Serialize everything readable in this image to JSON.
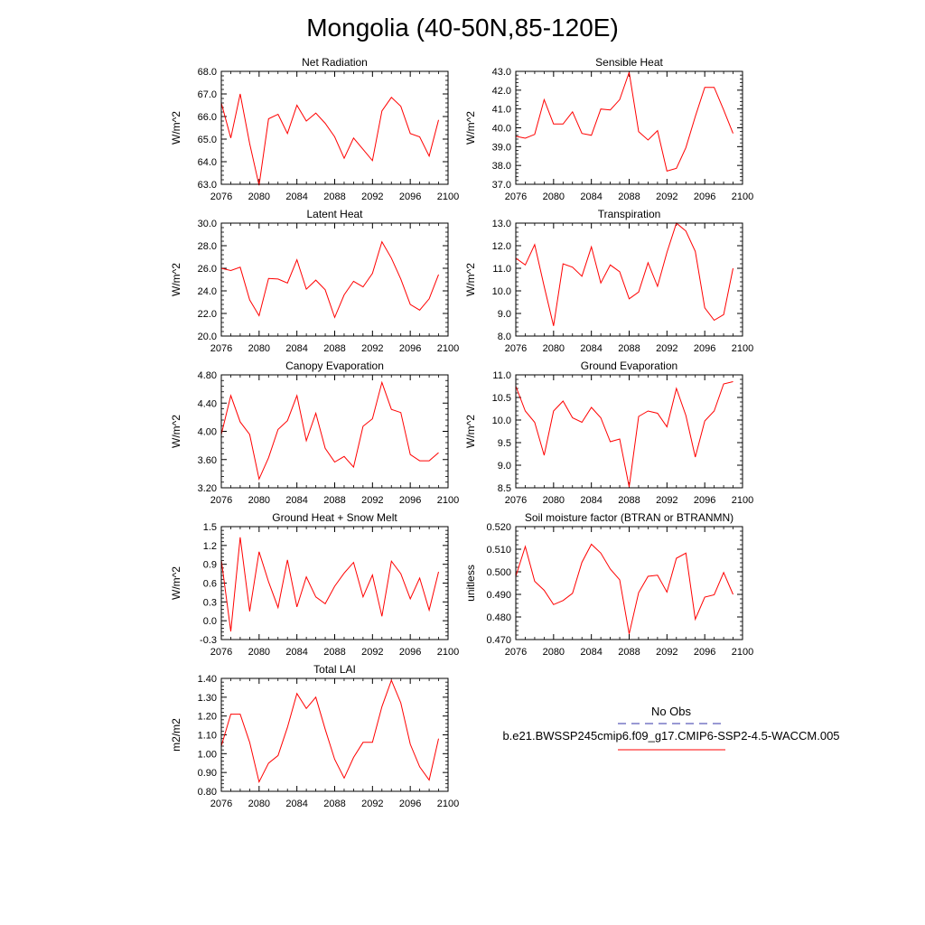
{
  "page": {
    "title": "Mongolia (40-50N,85-120E)"
  },
  "legend": {
    "obs_label": "No Obs",
    "obs_color": "#3333aa",
    "model_label": "b.e21.BWSSP245cmip6.f09_g17.CMIP6-SSP2-4.5-WACCM.005",
    "model_color": "#ff0000"
  },
  "chart_data": [
    {
      "type": "line",
      "title": "Net Radiation",
      "ylabel": "W/m^2",
      "xlim": [
        2076,
        2100
      ],
      "ylim": [
        63.0,
        68.0
      ],
      "xticks": [
        "2076",
        "2080",
        "2084",
        "2088",
        "2092",
        "2096",
        "2100"
      ],
      "yticks": [
        "63.0",
        "64.0",
        "65.0",
        "66.0",
        "67.0",
        "68.0"
      ],
      "x": [
        2076,
        2077,
        2078,
        2079,
        2080,
        2081,
        2082,
        2083,
        2084,
        2085,
        2086,
        2087,
        2088,
        2089,
        2090,
        2091,
        2092,
        2093,
        2094,
        2095,
        2096,
        2097,
        2098,
        2099
      ],
      "series": [
        {
          "color": "#ff0000",
          "values": [
            66.6,
            65.05,
            67.0,
            64.8,
            62.95,
            65.9,
            66.1,
            65.25,
            66.5,
            65.8,
            66.15,
            65.7,
            65.1,
            64.15,
            65.05,
            64.55,
            64.05,
            66.25,
            66.85,
            66.45,
            65.25,
            65.1,
            64.25,
            65.85
          ]
        }
      ]
    },
    {
      "type": "line",
      "title": "Sensible Heat",
      "ylabel": "W/m^2",
      "xlim": [
        2076,
        2100
      ],
      "ylim": [
        37.0,
        43.0
      ],
      "xticks": [
        "2076",
        "2080",
        "2084",
        "2088",
        "2092",
        "2096",
        "2100"
      ],
      "yticks": [
        "37.0",
        "38.0",
        "39.0",
        "40.0",
        "41.0",
        "42.0",
        "43.0"
      ],
      "x": [
        2076,
        2077,
        2078,
        2079,
        2080,
        2081,
        2082,
        2083,
        2084,
        2085,
        2086,
        2087,
        2088,
        2089,
        2090,
        2091,
        2092,
        2093,
        2094,
        2095,
        2096,
        2097,
        2098,
        2099
      ],
      "series": [
        {
          "color": "#ff0000",
          "values": [
            39.55,
            39.45,
            39.65,
            41.5,
            40.2,
            40.2,
            40.85,
            39.7,
            39.6,
            41.0,
            40.95,
            41.5,
            42.95,
            39.8,
            39.35,
            39.85,
            37.7,
            37.85,
            38.95,
            40.6,
            42.15,
            42.15,
            40.95,
            39.7
          ]
        }
      ]
    },
    {
      "type": "line",
      "title": "Latent Heat",
      "ylabel": "W/m^2",
      "xlim": [
        2076,
        2100
      ],
      "ylim": [
        20.0,
        30.0
      ],
      "xticks": [
        "2076",
        "2080",
        "2084",
        "2088",
        "2092",
        "2096",
        "2100"
      ],
      "yticks": [
        "20.0",
        "22.0",
        "24.0",
        "26.0",
        "28.0",
        "30.0"
      ],
      "x": [
        2076,
        2077,
        2078,
        2079,
        2080,
        2081,
        2082,
        2083,
        2084,
        2085,
        2086,
        2087,
        2088,
        2089,
        2090,
        2091,
        2092,
        2093,
        2094,
        2095,
        2096,
        2097,
        2098,
        2099
      ],
      "series": [
        {
          "color": "#ff0000",
          "values": [
            26.0,
            25.8,
            26.1,
            23.2,
            21.8,
            25.1,
            25.05,
            24.7,
            26.75,
            24.15,
            24.95,
            24.1,
            21.65,
            23.65,
            24.85,
            24.35,
            25.55,
            28.35,
            26.9,
            25.05,
            22.8,
            22.3,
            23.3,
            25.45
          ]
        }
      ]
    },
    {
      "type": "line",
      "title": "Transpiration",
      "ylabel": "W/m^2",
      "xlim": [
        2076,
        2100
      ],
      "ylim": [
        8.0,
        13.0
      ],
      "xticks": [
        "2076",
        "2080",
        "2084",
        "2088",
        "2092",
        "2096",
        "2100"
      ],
      "yticks": [
        "8.0",
        "9.0",
        "10.0",
        "11.0",
        "12.0",
        "13.0"
      ],
      "x": [
        2076,
        2077,
        2078,
        2079,
        2080,
        2081,
        2082,
        2083,
        2084,
        2085,
        2086,
        2087,
        2088,
        2089,
        2090,
        2091,
        2092,
        2093,
        2094,
        2095,
        2096,
        2097,
        2098,
        2099
      ],
      "series": [
        {
          "color": "#ff0000",
          "values": [
            11.45,
            11.15,
            12.05,
            10.2,
            8.45,
            11.2,
            11.05,
            10.65,
            11.95,
            10.35,
            11.15,
            10.85,
            9.65,
            9.95,
            11.25,
            10.2,
            11.7,
            13.0,
            12.65,
            11.75,
            9.25,
            8.7,
            8.95,
            11.0
          ]
        }
      ]
    },
    {
      "type": "line",
      "title": "Canopy Evaporation",
      "ylabel": "W/m^2",
      "xlim": [
        2076,
        2100
      ],
      "ylim": [
        3.0,
        4.8
      ],
      "xticks": [
        "2076",
        "2080",
        "2084",
        "2088",
        "2092",
        "2096",
        "2100"
      ],
      "yticks": [
        "3.20",
        "3.60",
        "4.00",
        "4.40",
        "4.80"
      ],
      "x": [
        2076,
        2077,
        2078,
        2079,
        2080,
        2081,
        2082,
        2083,
        2084,
        2085,
        2086,
        2087,
        2088,
        2089,
        2090,
        2091,
        2092,
        2093,
        2094,
        2095,
        2096,
        2097,
        2098,
        2099
      ],
      "series": [
        {
          "color": "#ff0000",
          "values": [
            3.85,
            4.47,
            4.05,
            3.85,
            3.14,
            3.48,
            3.93,
            4.07,
            4.47,
            3.75,
            4.19,
            3.63,
            3.41,
            3.5,
            3.33,
            3.98,
            4.1,
            4.68,
            4.25,
            4.2,
            3.53,
            3.43,
            3.43,
            3.56
          ]
        }
      ]
    },
    {
      "type": "line",
      "title": "Ground Evaporation",
      "ylabel": "W/m^2",
      "xlim": [
        2076,
        2100
      ],
      "ylim": [
        8.5,
        11.0
      ],
      "xticks": [
        "2076",
        "2080",
        "2084",
        "2088",
        "2092",
        "2096",
        "2100"
      ],
      "yticks": [
        "8.5",
        "9.0",
        "9.5",
        "10.0",
        "10.5",
        "11.0"
      ],
      "x": [
        2076,
        2077,
        2078,
        2079,
        2080,
        2081,
        2082,
        2083,
        2084,
        2085,
        2086,
        2087,
        2088,
        2089,
        2090,
        2091,
        2092,
        2093,
        2094,
        2095,
        2096,
        2097,
        2098,
        2099
      ],
      "series": [
        {
          "color": "#ff0000",
          "values": [
            10.75,
            10.2,
            9.95,
            9.22,
            10.2,
            10.42,
            10.05,
            9.95,
            10.28,
            10.05,
            9.52,
            9.58,
            8.52,
            10.08,
            10.2,
            10.15,
            9.85,
            10.7,
            10.1,
            9.18,
            9.98,
            10.2,
            10.8,
            10.85
          ]
        }
      ]
    },
    {
      "type": "line",
      "title": "Ground Heat + Snow Melt",
      "ylabel": "W/m^2",
      "xlim": [
        2076,
        2100
      ],
      "ylim": [
        -0.3,
        1.5
      ],
      "xticks": [
        "2076",
        "2080",
        "2084",
        "2088",
        "2092",
        "2096",
        "2100"
      ],
      "yticks": [
        "-0.3",
        "0.0",
        "0.3",
        "0.6",
        "0.9",
        "1.2",
        "1.5"
      ],
      "x": [
        2076,
        2077,
        2078,
        2079,
        2080,
        2081,
        2082,
        2083,
        2084,
        2085,
        2086,
        2087,
        2088,
        2089,
        2090,
        2091,
        2092,
        2093,
        2094,
        2095,
        2096,
        2097,
        2098,
        2099
      ],
      "series": [
        {
          "color": "#ff0000",
          "values": [
            0.97,
            -0.17,
            1.33,
            0.15,
            1.1,
            0.62,
            0.21,
            0.97,
            0.22,
            0.7,
            0.38,
            0.27,
            0.55,
            0.76,
            0.93,
            0.38,
            0.73,
            0.07,
            0.95,
            0.75,
            0.35,
            0.68,
            0.17,
            0.78
          ]
        }
      ]
    },
    {
      "type": "line",
      "title": "Soil moisture factor (BTRAN or BTRANMN)",
      "ylabel": "unitless",
      "xlim": [
        2076,
        2100
      ],
      "ylim": [
        0.47,
        0.52
      ],
      "xticks": [
        "2076",
        "2080",
        "2084",
        "2088",
        "2092",
        "2096",
        "2100"
      ],
      "yticks": [
        "0.470",
        "0.480",
        "0.490",
        "0.500",
        "0.510",
        "0.520"
      ],
      "x": [
        2076,
        2077,
        2078,
        2079,
        2080,
        2081,
        2082,
        2083,
        2084,
        2085,
        2086,
        2087,
        2088,
        2089,
        2090,
        2091,
        2092,
        2093,
        2094,
        2095,
        2096,
        2097,
        2098,
        2099
      ],
      "series": [
        {
          "color": "#ff0000",
          "values": [
            0.498,
            0.5112,
            0.4958,
            0.4918,
            0.4855,
            0.4873,
            0.4905,
            0.5042,
            0.5122,
            0.5083,
            0.5012,
            0.4965,
            0.4725,
            0.4908,
            0.498,
            0.4985,
            0.491,
            0.506,
            0.5083,
            0.479,
            0.4888,
            0.4898,
            0.4997,
            0.49
          ]
        }
      ]
    },
    {
      "type": "line",
      "title": "Total LAI",
      "ylabel": "m2/m2",
      "xlim": [
        2076,
        2100
      ],
      "ylim": [
        0.8,
        1.4
      ],
      "xticks": [
        "2076",
        "2080",
        "2084",
        "2088",
        "2092",
        "2096",
        "2100"
      ],
      "yticks": [
        "0.80",
        "0.90",
        "1.00",
        "1.10",
        "1.20",
        "1.30",
        "1.40"
      ],
      "x": [
        2076,
        2077,
        2078,
        2079,
        2080,
        2081,
        2082,
        2083,
        2084,
        2085,
        2086,
        2087,
        2088,
        2089,
        2090,
        2091,
        2092,
        2093,
        2094,
        2095,
        2096,
        2097,
        2098,
        2099
      ],
      "series": [
        {
          "color": "#ff0000",
          "values": [
            1.04,
            1.21,
            1.21,
            1.06,
            0.85,
            0.95,
            0.99,
            1.14,
            1.32,
            1.24,
            1.3,
            1.13,
            0.97,
            0.87,
            0.98,
            1.06,
            1.06,
            1.25,
            1.39,
            1.27,
            1.05,
            0.93,
            0.86,
            1.08
          ]
        }
      ]
    }
  ]
}
